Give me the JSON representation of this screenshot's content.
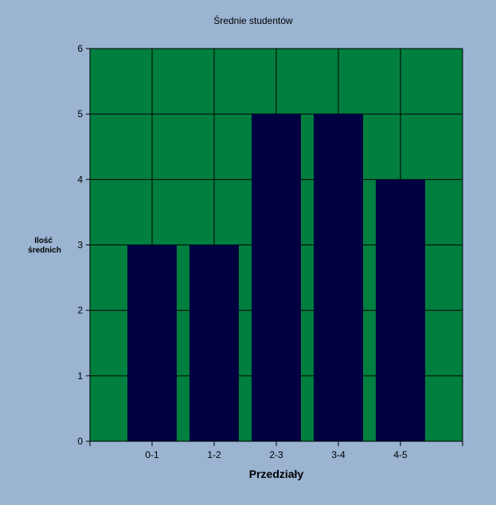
{
  "chart_data": {
    "type": "bar",
    "title": "Średnie studentów",
    "xlabel": "Przedziały",
    "ylabel": [
      "Ilość",
      "średnich"
    ],
    "categories": [
      "0-1",
      "1-2",
      "2-3",
      "3-4",
      "4-5"
    ],
    "values": [
      3,
      3,
      5,
      5,
      4
    ],
    "ylim": [
      0,
      6
    ],
    "yticks": [
      0,
      1,
      2,
      3,
      4,
      5,
      6
    ],
    "grid": true,
    "legend": "none",
    "colors": {
      "background": "#9ab4d2",
      "plot_area": "#007f3f",
      "bar": "#000040",
      "grid": "#000000"
    }
  }
}
